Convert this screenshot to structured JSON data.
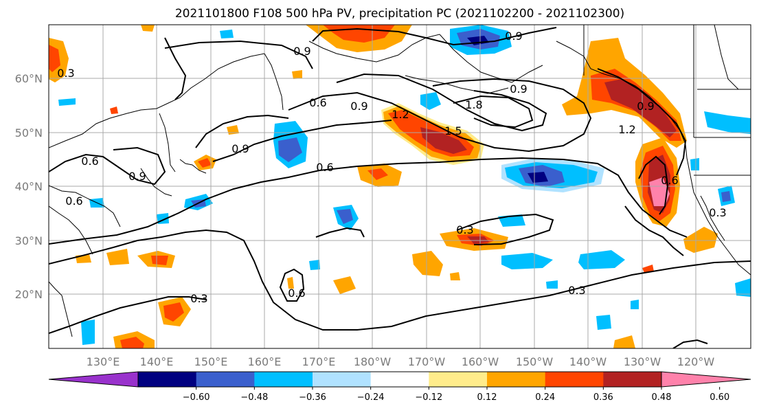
{
  "title": "2021101800 F108 500 hPa PV, precipitation PC (2021102200 - 2021102300)",
  "lon_ticks": [
    "130°E",
    "140°E",
    "150°E",
    "160°E",
    "170°E",
    "180°W",
    "170°W",
    "160°W",
    "150°W",
    "140°W",
    "130°W",
    "120°W"
  ],
  "lat_ticks": [
    "20°N",
    "30°N",
    "40°N",
    "50°N",
    "60°N"
  ],
  "colorbar": {
    "ticks": [
      "−0.60",
      "−0.48",
      "−0.36",
      "−0.24",
      "−0.12",
      "0.12",
      "0.24",
      "0.36",
      "0.48",
      "0.60"
    ],
    "colors": [
      "#9932cc",
      "#000080",
      "#3a5fcd",
      "#00bfff",
      "#b0e2ff",
      "#ffffff",
      "#ffec8b",
      "#ffa500",
      "#ff4500",
      "#b22222",
      "#ff82ab"
    ]
  },
  "contour_labels": [
    "0.9",
    "0.9",
    "0.3",
    "0.6",
    "0.9",
    "1.2",
    "1.5",
    "1.8",
    "0.9",
    "0.6",
    "0.9",
    "0.6",
    "0.9",
    "0.6",
    "1.2",
    "0.9",
    "0.6",
    "0.3",
    "0.3",
    "0.6",
    "0.3",
    "0.3"
  ]
}
